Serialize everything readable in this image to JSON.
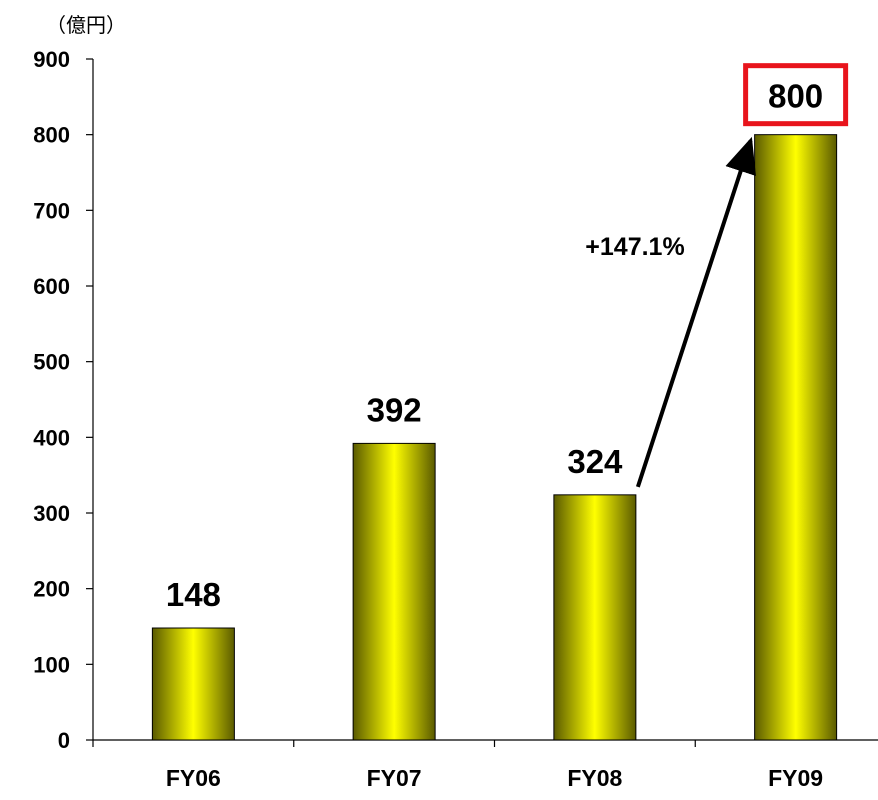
{
  "chart_data": {
    "type": "bar",
    "unit_label": "（億円）",
    "categories": [
      "FY06",
      "FY07",
      "FY08",
      "FY09"
    ],
    "values": [
      148,
      392,
      324,
      800
    ],
    "data_labels": [
      "148",
      "392",
      "324",
      "800"
    ],
    "ylim": [
      0,
      900
    ],
    "yticks": [
      "0",
      "100",
      "200",
      "300",
      "400",
      "500",
      "600",
      "700",
      "800",
      "900"
    ],
    "grid": false,
    "legend": "none",
    "bar_color": "#e6e600",
    "highlight": {
      "category": "FY09",
      "box_color": "#e8141c"
    },
    "annotation": {
      "text": "+147.1%",
      "from": "FY08",
      "to": "FY09"
    }
  }
}
